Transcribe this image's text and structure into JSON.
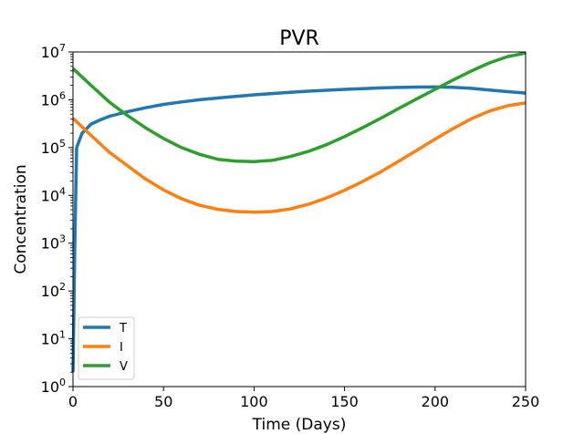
{
  "chart_data": {
    "type": "line",
    "title": "PVR",
    "xlabel": "Time (Days)",
    "ylabel": "Concentration",
    "xlim": [
      0,
      250
    ],
    "ylim": [
      1,
      10000000
    ],
    "yscale": "log",
    "x_ticks": [
      0,
      50,
      100,
      150,
      200,
      250
    ],
    "y_tick_base": "10",
    "y_tick_exponents": [
      "0",
      "1",
      "2",
      "3",
      "4",
      "5",
      "6",
      "7"
    ],
    "grid": false,
    "legend_position": "lower-left",
    "series": [
      {
        "name": "T",
        "color": "#1f77b4",
        "points": [
          [
            0,
            2
          ],
          [
            1,
            1000
          ],
          [
            2,
            100000
          ],
          [
            5,
            200000
          ],
          [
            10,
            310000
          ],
          [
            15,
            380000
          ],
          [
            20,
            450000
          ],
          [
            30,
            560000
          ],
          [
            40,
            680000
          ],
          [
            50,
            800000
          ],
          [
            60,
            900000
          ],
          [
            70,
            1000000
          ],
          [
            80,
            1090000
          ],
          [
            90,
            1180000
          ],
          [
            100,
            1270000
          ],
          [
            110,
            1350000
          ],
          [
            120,
            1430000
          ],
          [
            130,
            1510000
          ],
          [
            140,
            1580000
          ],
          [
            150,
            1650000
          ],
          [
            160,
            1710000
          ],
          [
            170,
            1770000
          ],
          [
            180,
            1810000
          ],
          [
            190,
            1840000
          ],
          [
            200,
            1850000
          ],
          [
            210,
            1820000
          ],
          [
            220,
            1730000
          ],
          [
            230,
            1600000
          ],
          [
            240,
            1480000
          ],
          [
            250,
            1380000
          ]
        ]
      },
      {
        "name": "I",
        "color": "#ff7f0e",
        "points": [
          [
            0,
            410000
          ],
          [
            10,
            180000
          ],
          [
            20,
            80000
          ],
          [
            30,
            42000
          ],
          [
            40,
            22000
          ],
          [
            50,
            13000
          ],
          [
            60,
            8500
          ],
          [
            70,
            6200
          ],
          [
            80,
            5100
          ],
          [
            90,
            4600
          ],
          [
            100,
            4450
          ],
          [
            110,
            4600
          ],
          [
            120,
            5200
          ],
          [
            130,
            6500
          ],
          [
            140,
            8800
          ],
          [
            150,
            12800
          ],
          [
            160,
            19500
          ],
          [
            170,
            31000
          ],
          [
            180,
            52000
          ],
          [
            190,
            88000
          ],
          [
            200,
            150000
          ],
          [
            210,
            250000
          ],
          [
            220,
            400000
          ],
          [
            230,
            580000
          ],
          [
            240,
            750000
          ],
          [
            250,
            860000
          ]
        ]
      },
      {
        "name": "V",
        "color": "#2ca02c",
        "points": [
          [
            0,
            4500000
          ],
          [
            10,
            2000000
          ],
          [
            20,
            900000
          ],
          [
            30,
            470000
          ],
          [
            40,
            260000
          ],
          [
            50,
            155000
          ],
          [
            60,
            100000
          ],
          [
            70,
            72000
          ],
          [
            80,
            57000
          ],
          [
            90,
            52000
          ],
          [
            100,
            51000
          ],
          [
            110,
            54000
          ],
          [
            120,
            65000
          ],
          [
            130,
            83000
          ],
          [
            140,
            115000
          ],
          [
            150,
            170000
          ],
          [
            160,
            260000
          ],
          [
            170,
            410000
          ],
          [
            180,
            660000
          ],
          [
            190,
            1050000
          ],
          [
            200,
            1650000
          ],
          [
            210,
            2600000
          ],
          [
            220,
            4000000
          ],
          [
            230,
            5900000
          ],
          [
            240,
            8000000
          ],
          [
            250,
            9500000
          ]
        ]
      }
    ]
  }
}
